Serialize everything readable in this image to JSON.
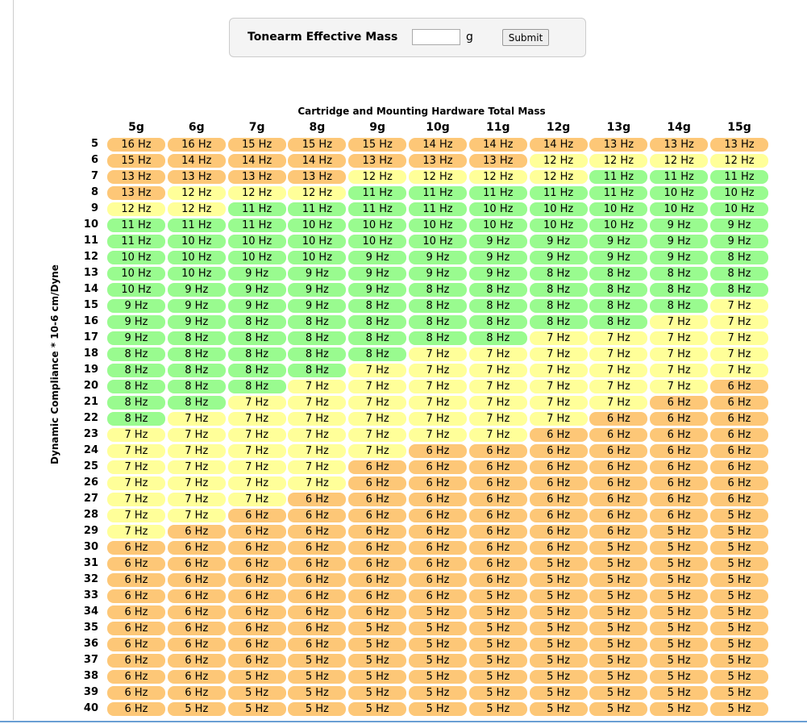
{
  "header": {
    "title": "Tonearm Effective Mass",
    "unit": "g",
    "button": "Submit"
  },
  "table": {
    "title": "Cartridge and Mounting Hardware Total Mass",
    "y_label": "Dynamic Compliance * 10-6 cm/Dyne",
    "columns": [
      "5g",
      "6g",
      "7g",
      "8g",
      "9g",
      "10g",
      "11g",
      "12g",
      "13g",
      "14g",
      "15g"
    ],
    "rows": [
      {
        "label": "5",
        "cells": [
          "16 Hz",
          "16 Hz",
          "15 Hz",
          "15 Hz",
          "15 Hz",
          "14 Hz",
          "14 Hz",
          "14 Hz",
          "13 Hz",
          "13 Hz",
          "13 Hz"
        ]
      },
      {
        "label": "6",
        "cells": [
          "15 Hz",
          "14 Hz",
          "14 Hz",
          "14 Hz",
          "13 Hz",
          "13 Hz",
          "13 Hz",
          "12 Hz",
          "12 Hz",
          "12 Hz",
          "12 Hz"
        ]
      },
      {
        "label": "7",
        "cells": [
          "13 Hz",
          "13 Hz",
          "13 Hz",
          "13 Hz",
          "12 Hz",
          "12 Hz",
          "12 Hz",
          "12 Hz",
          "11 Hz",
          "11 Hz",
          "11 Hz"
        ]
      },
      {
        "label": "8",
        "cells": [
          "13 Hz",
          "12 Hz",
          "12 Hz",
          "12 Hz",
          "11 Hz",
          "11 Hz",
          "11 Hz",
          "11 Hz",
          "11 Hz",
          "10 Hz",
          "10 Hz"
        ]
      },
      {
        "label": "9",
        "cells": [
          "12 Hz",
          "12 Hz",
          "11 Hz",
          "11 Hz",
          "11 Hz",
          "11 Hz",
          "10 Hz",
          "10 Hz",
          "10 Hz",
          "10 Hz",
          "10 Hz"
        ]
      },
      {
        "label": "10",
        "cells": [
          "11 Hz",
          "11 Hz",
          "11 Hz",
          "10 Hz",
          "10 Hz",
          "10 Hz",
          "10 Hz",
          "10 Hz",
          "10 Hz",
          "9 Hz",
          "9 Hz"
        ]
      },
      {
        "label": "11",
        "cells": [
          "11 Hz",
          "10 Hz",
          "10 Hz",
          "10 Hz",
          "10 Hz",
          "10 Hz",
          "9 Hz",
          "9 Hz",
          "9 Hz",
          "9 Hz",
          "9 Hz"
        ]
      },
      {
        "label": "12",
        "cells": [
          "10 Hz",
          "10 Hz",
          "10 Hz",
          "10 Hz",
          "9 Hz",
          "9 Hz",
          "9 Hz",
          "9 Hz",
          "9 Hz",
          "9 Hz",
          "8 Hz"
        ]
      },
      {
        "label": "13",
        "cells": [
          "10 Hz",
          "10 Hz",
          "9 Hz",
          "9 Hz",
          "9 Hz",
          "9 Hz",
          "9 Hz",
          "8 Hz",
          "8 Hz",
          "8 Hz",
          "8 Hz"
        ]
      },
      {
        "label": "14",
        "cells": [
          "10 Hz",
          "9 Hz",
          "9 Hz",
          "9 Hz",
          "9 Hz",
          "8 Hz",
          "8 Hz",
          "8 Hz",
          "8 Hz",
          "8 Hz",
          "8 Hz"
        ]
      },
      {
        "label": "15",
        "cells": [
          "9 Hz",
          "9 Hz",
          "9 Hz",
          "9 Hz",
          "8 Hz",
          "8 Hz",
          "8 Hz",
          "8 Hz",
          "8 Hz",
          "8 Hz",
          "7 Hz"
        ]
      },
      {
        "label": "16",
        "cells": [
          "9 Hz",
          "9 Hz",
          "8 Hz",
          "8 Hz",
          "8 Hz",
          "8 Hz",
          "8 Hz",
          "8 Hz",
          "8 Hz",
          "7 Hz",
          "7 Hz"
        ]
      },
      {
        "label": "17",
        "cells": [
          "9 Hz",
          "8 Hz",
          "8 Hz",
          "8 Hz",
          "8 Hz",
          "8 Hz",
          "8 Hz",
          "7 Hz",
          "7 Hz",
          "7 Hz",
          "7 Hz"
        ]
      },
      {
        "label": "18",
        "cells": [
          "8 Hz",
          "8 Hz",
          "8 Hz",
          "8 Hz",
          "8 Hz",
          "7 Hz",
          "7 Hz",
          "7 Hz",
          "7 Hz",
          "7 Hz",
          "7 Hz"
        ]
      },
      {
        "label": "19",
        "cells": [
          "8 Hz",
          "8 Hz",
          "8 Hz",
          "8 Hz",
          "7 Hz",
          "7 Hz",
          "7 Hz",
          "7 Hz",
          "7 Hz",
          "7 Hz",
          "7 Hz"
        ]
      },
      {
        "label": "20",
        "cells": [
          "8 Hz",
          "8 Hz",
          "8 Hz",
          "7 Hz",
          "7 Hz",
          "7 Hz",
          "7 Hz",
          "7 Hz",
          "7 Hz",
          "7 Hz",
          "6 Hz"
        ]
      },
      {
        "label": "21",
        "cells": [
          "8 Hz",
          "8 Hz",
          "7 Hz",
          "7 Hz",
          "7 Hz",
          "7 Hz",
          "7 Hz",
          "7 Hz",
          "7 Hz",
          "6 Hz",
          "6 Hz"
        ]
      },
      {
        "label": "22",
        "cells": [
          "8 Hz",
          "7 Hz",
          "7 Hz",
          "7 Hz",
          "7 Hz",
          "7 Hz",
          "7 Hz",
          "7 Hz",
          "6 Hz",
          "6 Hz",
          "6 Hz"
        ]
      },
      {
        "label": "23",
        "cells": [
          "7 Hz",
          "7 Hz",
          "7 Hz",
          "7 Hz",
          "7 Hz",
          "7 Hz",
          "7 Hz",
          "6 Hz",
          "6 Hz",
          "6 Hz",
          "6 Hz"
        ]
      },
      {
        "label": "24",
        "cells": [
          "7 Hz",
          "7 Hz",
          "7 Hz",
          "7 Hz",
          "7 Hz",
          "6 Hz",
          "6 Hz",
          "6 Hz",
          "6 Hz",
          "6 Hz",
          "6 Hz"
        ]
      },
      {
        "label": "25",
        "cells": [
          "7 Hz",
          "7 Hz",
          "7 Hz",
          "7 Hz",
          "6 Hz",
          "6 Hz",
          "6 Hz",
          "6 Hz",
          "6 Hz",
          "6 Hz",
          "6 Hz"
        ]
      },
      {
        "label": "26",
        "cells": [
          "7 Hz",
          "7 Hz",
          "7 Hz",
          "7 Hz",
          "6 Hz",
          "6 Hz",
          "6 Hz",
          "6 Hz",
          "6 Hz",
          "6 Hz",
          "6 Hz"
        ]
      },
      {
        "label": "27",
        "cells": [
          "7 Hz",
          "7 Hz",
          "7 Hz",
          "6 Hz",
          "6 Hz",
          "6 Hz",
          "6 Hz",
          "6 Hz",
          "6 Hz",
          "6 Hz",
          "6 Hz"
        ]
      },
      {
        "label": "28",
        "cells": [
          "7 Hz",
          "7 Hz",
          "6 Hz",
          "6 Hz",
          "6 Hz",
          "6 Hz",
          "6 Hz",
          "6 Hz",
          "6 Hz",
          "6 Hz",
          "5 Hz"
        ]
      },
      {
        "label": "29",
        "cells": [
          "7 Hz",
          "6 Hz",
          "6 Hz",
          "6 Hz",
          "6 Hz",
          "6 Hz",
          "6 Hz",
          "6 Hz",
          "6 Hz",
          "5 Hz",
          "5 Hz"
        ]
      },
      {
        "label": "30",
        "cells": [
          "6 Hz",
          "6 Hz",
          "6 Hz",
          "6 Hz",
          "6 Hz",
          "6 Hz",
          "6 Hz",
          "6 Hz",
          "5 Hz",
          "5 Hz",
          "5 Hz"
        ]
      },
      {
        "label": "31",
        "cells": [
          "6 Hz",
          "6 Hz",
          "6 Hz",
          "6 Hz",
          "6 Hz",
          "6 Hz",
          "6 Hz",
          "5 Hz",
          "5 Hz",
          "5 Hz",
          "5 Hz"
        ]
      },
      {
        "label": "32",
        "cells": [
          "6 Hz",
          "6 Hz",
          "6 Hz",
          "6 Hz",
          "6 Hz",
          "6 Hz",
          "6 Hz",
          "5 Hz",
          "5 Hz",
          "5 Hz",
          "5 Hz"
        ]
      },
      {
        "label": "33",
        "cells": [
          "6 Hz",
          "6 Hz",
          "6 Hz",
          "6 Hz",
          "6 Hz",
          "6 Hz",
          "5 Hz",
          "5 Hz",
          "5 Hz",
          "5 Hz",
          "5 Hz"
        ]
      },
      {
        "label": "34",
        "cells": [
          "6 Hz",
          "6 Hz",
          "6 Hz",
          "6 Hz",
          "6 Hz",
          "5 Hz",
          "5 Hz",
          "5 Hz",
          "5 Hz",
          "5 Hz",
          "5 Hz"
        ]
      },
      {
        "label": "35",
        "cells": [
          "6 Hz",
          "6 Hz",
          "6 Hz",
          "6 Hz",
          "5 Hz",
          "5 Hz",
          "5 Hz",
          "5 Hz",
          "5 Hz",
          "5 Hz",
          "5 Hz"
        ]
      },
      {
        "label": "36",
        "cells": [
          "6 Hz",
          "6 Hz",
          "6 Hz",
          "6 Hz",
          "5 Hz",
          "5 Hz",
          "5 Hz",
          "5 Hz",
          "5 Hz",
          "5 Hz",
          "5 Hz"
        ]
      },
      {
        "label": "37",
        "cells": [
          "6 Hz",
          "6 Hz",
          "6 Hz",
          "5 Hz",
          "5 Hz",
          "5 Hz",
          "5 Hz",
          "5 Hz",
          "5 Hz",
          "5 Hz",
          "5 Hz"
        ]
      },
      {
        "label": "38",
        "cells": [
          "6 Hz",
          "6 Hz",
          "5 Hz",
          "5 Hz",
          "5 Hz",
          "5 Hz",
          "5 Hz",
          "5 Hz",
          "5 Hz",
          "5 Hz",
          "5 Hz"
        ]
      },
      {
        "label": "39",
        "cells": [
          "6 Hz",
          "6 Hz",
          "5 Hz",
          "5 Hz",
          "5 Hz",
          "5 Hz",
          "5 Hz",
          "5 Hz",
          "5 Hz",
          "5 Hz",
          "5 Hz"
        ]
      },
      {
        "label": "40",
        "cells": [
          "6 Hz",
          "5 Hz",
          "5 Hz",
          "5 Hz",
          "5 Hz",
          "5 Hz",
          "5 Hz",
          "5 Hz",
          "5 Hz",
          "5 Hz",
          "5 Hz"
        ]
      }
    ]
  }
}
